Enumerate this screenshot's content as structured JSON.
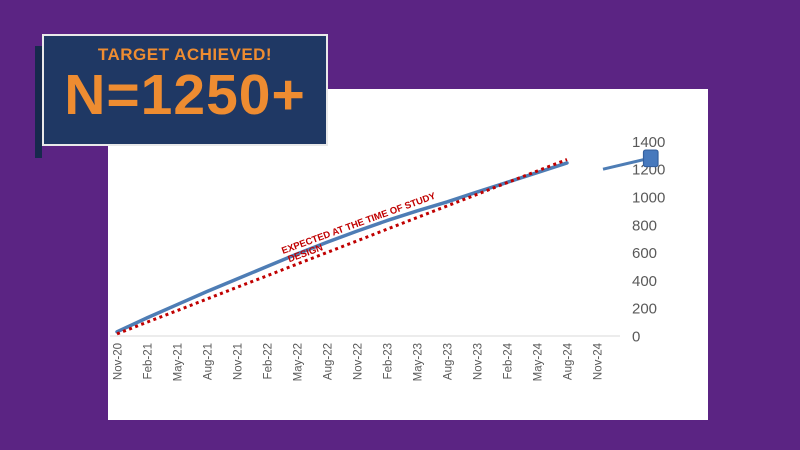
{
  "slide": {
    "background_color": "#5B2483"
  },
  "badge": {
    "title": "TARGET ACHIEVED!",
    "value": "N=1250+",
    "background_color": "#1F3864",
    "border_color": "#E9E9E9",
    "text_color": "#EE8C31"
  },
  "chart_data": {
    "type": "line",
    "title": "",
    "xlabel": "",
    "ylabel": "",
    "categories": [
      "Nov-20",
      "Feb-21",
      "May-21",
      "Aug-21",
      "Nov-21",
      "Feb-22",
      "May-22",
      "Aug-22",
      "Nov-22",
      "Feb-23",
      "May-23",
      "Aug-23",
      "Nov-23",
      "Feb-24",
      "May-24",
      "Aug-24",
      "Nov-24"
    ],
    "ylim": [
      0,
      1400
    ],
    "yticks": [
      0,
      200,
      400,
      600,
      800,
      1000,
      1200,
      1400
    ],
    "y_axis_side": "right",
    "grid": false,
    "legend": "none",
    "series": [
      {
        "name": "actual-enrollment",
        "style": "solid",
        "color": "#4E7DB5",
        "stroke_width": 3.5,
        "values": [
          30,
          130,
          225,
          320,
          410,
          500,
          590,
          675,
          755,
          830,
          900,
          965,
          1035,
          1105,
          1175,
          1245
        ],
        "note": "plotted Nov-20 through Aug-24"
      },
      {
        "name": "expected-at-study-design",
        "style": "dotted",
        "color": "#C00000",
        "stroke_width": 3,
        "values": [
          15,
          99,
          182,
          266,
          350,
          433,
          517,
          601,
          684,
          768,
          852,
          935,
          1019,
          1103,
          1186,
          1270
        ],
        "note": "plotted Nov-20 through Aug-24"
      }
    ],
    "end_marker": {
      "shape": "square",
      "fill": "#4779BD",
      "border_color": "#34609F",
      "value": 1280,
      "connector_from_value": 1200
    },
    "annotation": {
      "line1": "EXPECTED AT THE TIME OF STUDY",
      "line2": "DESIGN",
      "color": "#C00000",
      "rotation_deg": -20
    },
    "axis_style": {
      "tick_label_color": "#595959",
      "axis_line_color": "#D9D9D9"
    }
  }
}
